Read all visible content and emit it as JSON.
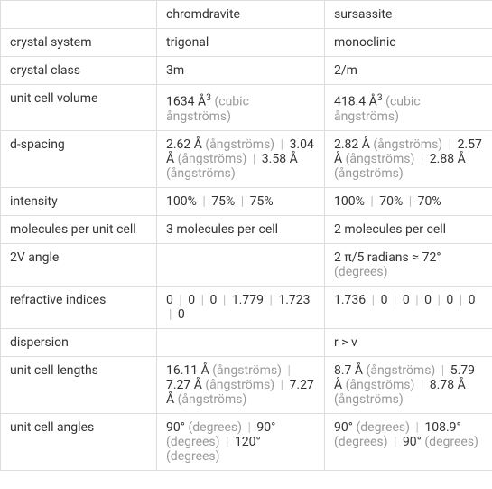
{
  "headers": {
    "col1": "chromdravite",
    "col2": "sursassite"
  },
  "rows": {
    "crystal_system": {
      "label": "crystal system",
      "col1": "trigonal",
      "col2": "monoclinic"
    },
    "crystal_class": {
      "label": "crystal class",
      "col1": "3m",
      "col2": "2/m"
    },
    "unit_cell_volume": {
      "label": "unit cell volume",
      "col1_val": "1634 Å",
      "col1_sup": "3",
      "col1_unit": "(cubic ångströms)",
      "col2_val": "418.4 Å",
      "col2_sup": "3",
      "col2_unit": "(cubic ångströms)"
    },
    "d_spacing": {
      "label": "d-spacing",
      "col1": {
        "v1": "2.62 Å",
        "u1": "(ångströms)",
        "v2": "3.04 Å",
        "u2": "(ångströms)",
        "v3": "3.58 Å",
        "u3": "(ångströms)"
      },
      "col2": {
        "v1": "2.82 Å",
        "u1": "(ångströms)",
        "v2": "2.57 Å",
        "u2": "(ångströms)",
        "v3": "2.88 Å",
        "u3": "(ångströms)"
      }
    },
    "intensity": {
      "label": "intensity",
      "col1": {
        "v1": "100%",
        "v2": "75%",
        "v3": "75%"
      },
      "col2": {
        "v1": "100%",
        "v2": "70%",
        "v3": "70%"
      }
    },
    "molecules": {
      "label": "molecules per unit cell",
      "col1": "3 molecules per cell",
      "col2": "2 molecules per cell"
    },
    "angle_2v": {
      "label": "2V angle",
      "col1": "",
      "col2_val": "2 π/5 radians ≈ 72°",
      "col2_unit": "(degrees)"
    },
    "refractive": {
      "label": "refractive indices",
      "col1": {
        "v1": "0",
        "v2": "0",
        "v3": "0",
        "v4": "1.779",
        "v5": "1.723",
        "v6": "0"
      },
      "col2": {
        "v1": "1.736",
        "v2": "0",
        "v3": "0",
        "v4": "0",
        "v5": "0",
        "v6": "0"
      }
    },
    "dispersion": {
      "label": "dispersion",
      "col1": "",
      "col2": "r > v"
    },
    "unit_cell_lengths": {
      "label": "unit cell lengths",
      "col1": {
        "v1": "16.11 Å",
        "u1": "(ångströms)",
        "v2": "7.27 Å",
        "u2": "(ångströms)",
        "v3": "7.27 Å",
        "u3": "(ångströms)"
      },
      "col2": {
        "v1": "8.7 Å",
        "u1": "(ångströms)",
        "v2": "5.79 Å",
        "u2": "(ångströms)",
        "v3": "8.78 Å",
        "u3": "(ångströms)"
      }
    },
    "unit_cell_angles": {
      "label": "unit cell angles",
      "col1": {
        "v1": "90°",
        "u1": "(degrees)",
        "v2": "90°",
        "u2": "(degrees)",
        "v3": "120°",
        "u3": "(degrees)"
      },
      "col2": {
        "v1": "90°",
        "u1": "(degrees)",
        "v2": "108.9°",
        "u2": "(degrees)",
        "v3": "90°",
        "u3": "(degrees)"
      }
    }
  },
  "sep": "|"
}
